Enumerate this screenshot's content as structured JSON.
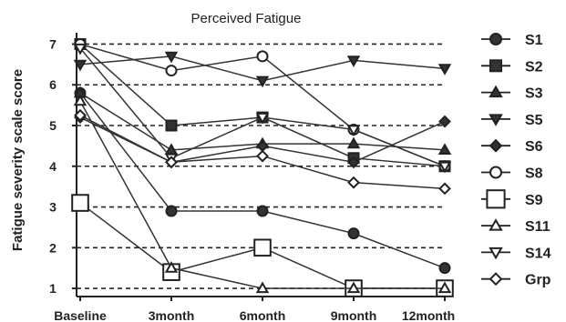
{
  "chart_data": {
    "type": "line",
    "title": "Perceived Fatigue",
    "ylabel": "Fatigue severity scale score",
    "xlabel": "",
    "categories": [
      "Baseline",
      "3month",
      "6month",
      "9month",
      "12month"
    ],
    "ylim": [
      0.8,
      7.1
    ],
    "yticks": [
      1,
      2,
      3,
      4,
      5,
      6,
      7
    ],
    "grid": "horizontal-dashed",
    "legend": "right",
    "series": [
      {
        "name": "S1",
        "marker": "circle",
        "values": [
          5.8,
          2.9,
          2.9,
          2.35,
          1.5
        ]
      },
      {
        "name": "S2",
        "marker": "square",
        "values": [
          7.0,
          5.0,
          5.2,
          4.2,
          4.0
        ]
      },
      {
        "name": "S3",
        "marker": "triangle-up",
        "values": [
          5.8,
          4.4,
          4.55,
          4.55,
          4.4
        ]
      },
      {
        "name": "S5",
        "marker": "triangle-down",
        "values": [
          6.5,
          6.7,
          6.1,
          6.6,
          6.4
        ]
      },
      {
        "name": "S6",
        "marker": "diamond",
        "values": [
          5.2,
          4.1,
          4.5,
          4.1,
          5.1
        ]
      },
      {
        "name": "S8",
        "marker": "circle-open",
        "values": [
          7.0,
          6.35,
          6.7,
          4.9,
          4.0
        ]
      },
      {
        "name": "S9",
        "marker": "square-open",
        "values": [
          3.1,
          1.4,
          2.0,
          1.0,
          1.0
        ]
      },
      {
        "name": "S11",
        "marker": "triangle-up-open",
        "values": [
          5.6,
          1.5,
          1.0,
          1.0,
          1.0
        ]
      },
      {
        "name": "S14",
        "marker": "triangle-down-open",
        "values": [
          6.9,
          4.2,
          5.2,
          4.9,
          4.0
        ]
      },
      {
        "name": "Grp",
        "marker": "diamond-open",
        "values": [
          5.25,
          4.1,
          4.25,
          3.6,
          3.45
        ]
      }
    ]
  }
}
